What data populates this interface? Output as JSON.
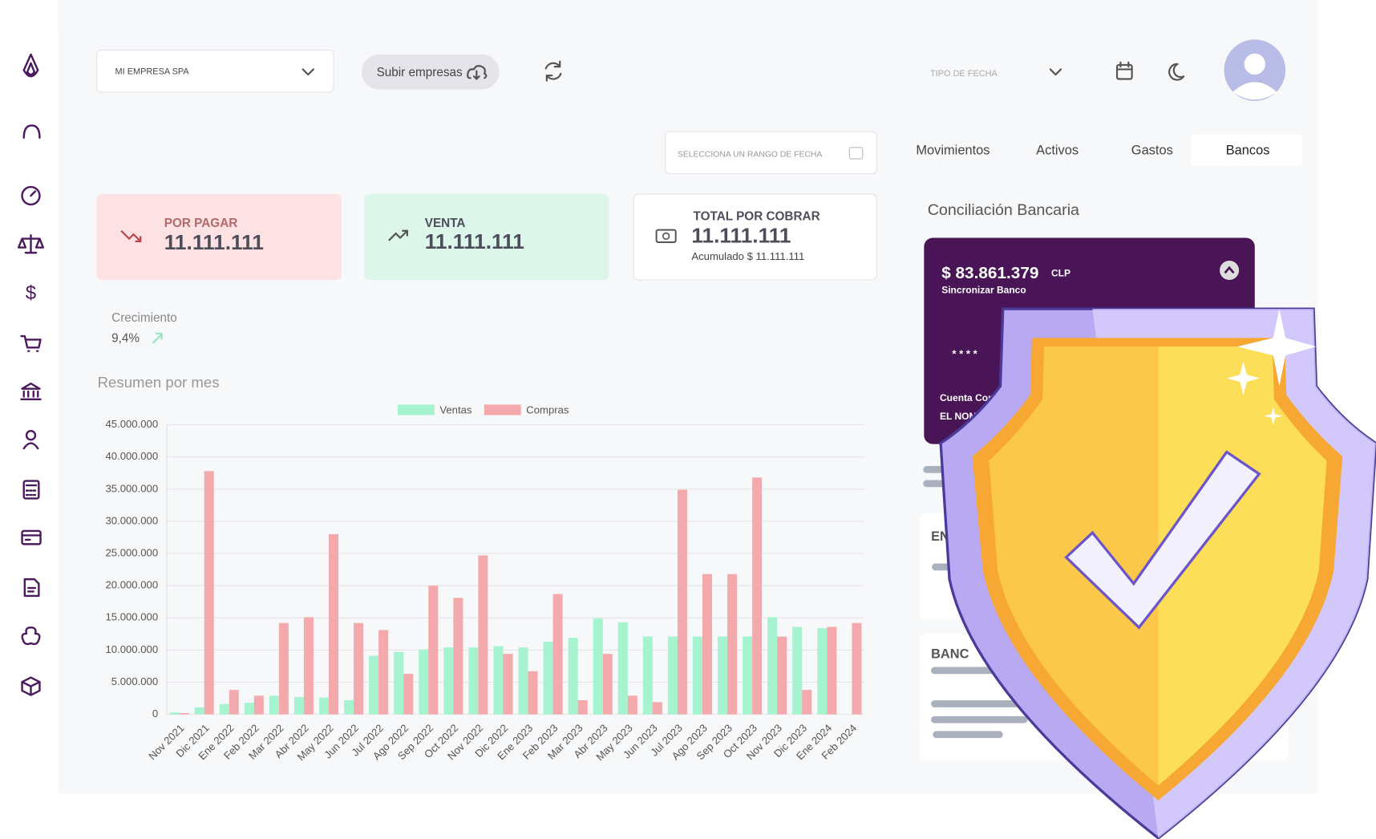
{
  "header": {
    "company": "MI EMPRESA SPA",
    "upload_button": "Subir empresas",
    "date_type": "TIPO DE FECHA",
    "date_range": "SELECCIONA UN RANGO DE FECHA"
  },
  "tabs": [
    "Movimientos",
    "Activos",
    "Gastos",
    "Bancos"
  ],
  "cards": [
    {
      "label": "POR PAGAR",
      "value": "11.111.111"
    },
    {
      "label": "VENTA",
      "value": "11.111.111"
    },
    {
      "label": "TOTAL POR COBRAR",
      "value": "11.111.111",
      "note": "Acumulado $ 11.111.111"
    }
  ],
  "growth": {
    "label": "Crecimiento",
    "value": "9,4%"
  },
  "chart_data": {
    "type": "bar",
    "title": "Resumen por mes",
    "categories": [
      "Nov 2021",
      "Dic 2021",
      "Ene 2022",
      "Feb 2022",
      "Mar 2022",
      "Abr 2022",
      "May 2022",
      "Jun 2022",
      "Jul 2022",
      "Ago 2022",
      "Sep 2022",
      "Oct 2022",
      "Nov 2022",
      "Dic 2022",
      "Ene 2023",
      "Feb 2023",
      "Mar 2023",
      "Abr 2023",
      "May 2023",
      "Jun 2023",
      "Jul 2023",
      "Ago 2023",
      "Sep 2023",
      "Oct 2023",
      "Nov 2023",
      "Dic 2023",
      "Ene 2024",
      "Feb 2024"
    ],
    "series": [
      {
        "name": "Ventas",
        "color": "#a6f3cf",
        "values": [
          300000,
          1100000,
          1600000,
          1800000,
          2900000,
          2700000,
          2600000,
          2200000,
          9100000,
          9700000,
          10100000,
          10400000,
          10400000,
          10600000,
          10400000,
          11300000,
          11900000,
          14900000,
          14300000,
          12100000,
          12100000,
          12100000,
          12100000,
          12100000,
          15100000,
          13600000,
          13400000,
          0
        ]
      },
      {
        "name": "Compras",
        "color": "#f4a9ac",
        "values": [
          200000,
          37800000,
          3800000,
          2900000,
          14200000,
          15100000,
          28000000,
          14200000,
          13100000,
          6300000,
          20000000,
          18100000,
          24700000,
          9400000,
          6700000,
          18700000,
          2200000,
          9400000,
          2900000,
          1900000,
          34900000,
          21800000,
          21800000,
          36800000,
          12100000,
          3800000,
          13600000,
          14200000
        ]
      }
    ],
    "ylim": [
      0,
      45000000
    ],
    "yticks": [
      0,
      {
        "value": 5000000,
        "label": "5.000.000"
      },
      {
        "value": 10000000,
        "label": "10.000.000"
      },
      {
        "value": 15000000,
        "label": "15.000.000"
      },
      {
        "value": 20000000,
        "label": "20.000.000"
      },
      {
        "value": 25000000,
        "label": "25.000.000"
      },
      {
        "value": 30000000,
        "label": "30.000.000"
      },
      {
        "value": 35000000,
        "label": "35.000.000"
      },
      {
        "value": 40000000,
        "label": "40.000.000"
      },
      {
        "value": 45000000,
        "label": "45.000.000"
      }
    ],
    "grid": true
  },
  "bank": {
    "title": "Conciliación Bancaria",
    "balance": "$ 83.861.379",
    "currency": "CLP",
    "sync": "Sincronizar Banco",
    "card_number": "* * * *",
    "account": "Cuenta Cor",
    "owner": "EL NOMB",
    "section_1": "EN",
    "section_2": "BANC"
  }
}
